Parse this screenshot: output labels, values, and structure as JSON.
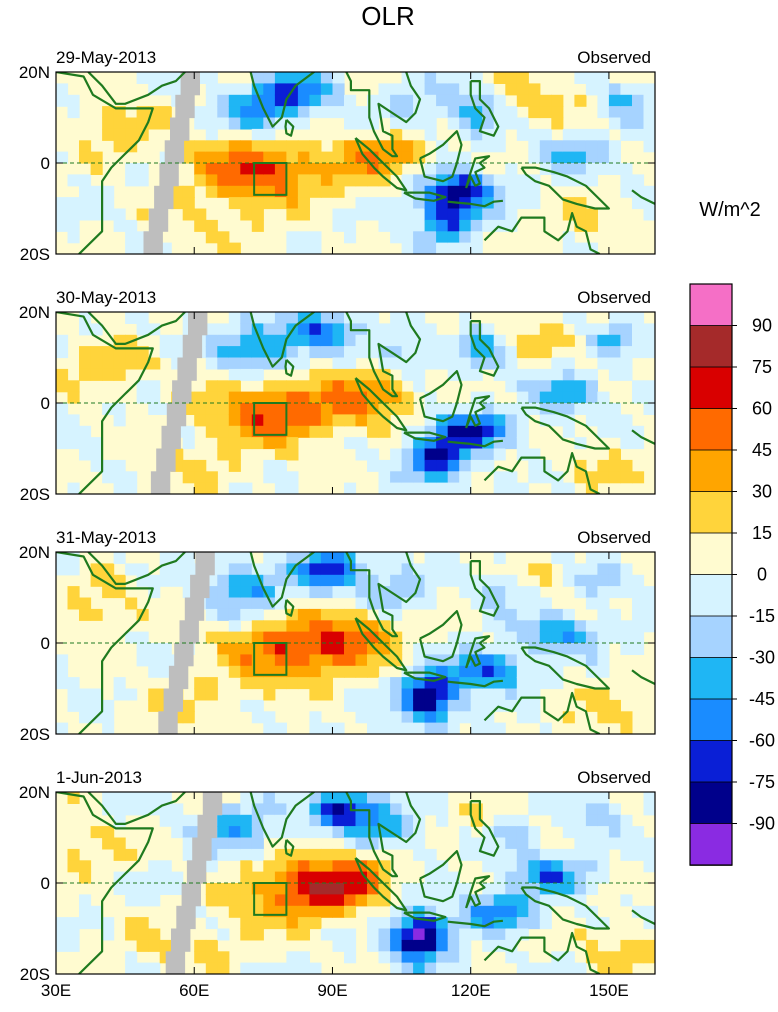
{
  "chart_data": {
    "type": "heatmap",
    "title": "OLR",
    "units": "W/m^2",
    "xlim_deg_east": [
      30,
      160
    ],
    "ylim_deg_north": [
      -20,
      20
    ],
    "x_tick_values": [
      30,
      60,
      90,
      120,
      150
    ],
    "x_tick_labels": [
      "30E",
      "60E",
      "90E",
      "120E",
      "150E"
    ],
    "y_tick_values": [
      20,
      0,
      -20
    ],
    "y_tick_labels": [
      "20N",
      "0",
      "20S"
    ],
    "panel_tag": "Observed",
    "panels": [
      {
        "date": "29-May-2013",
        "source": "Observed"
      },
      {
        "date": "30-May-2013",
        "source": "Observed"
      },
      {
        "date": "31-May-2013",
        "source": "Observed"
      },
      {
        "date": "1-Jun-2013",
        "source": "Observed"
      }
    ],
    "colorbar": {
      "levels": [
        90,
        75,
        60,
        45,
        30,
        15,
        0,
        -15,
        -30,
        -45,
        -60,
        -75,
        -90
      ],
      "level_labels": [
        "90",
        "75",
        "60",
        "45",
        "30",
        "15",
        "0",
        "-15",
        "-30",
        "-45",
        "-60",
        "-75",
        "-90"
      ],
      "colors_top_to_bottom": [
        "#f56fc6",
        "#a52a2a",
        "#d90000",
        "#ff6a00",
        "#ffa500",
        "#ffd43b",
        "#fffbd0",
        "#d6f3ff",
        "#a6d3ff",
        "#1fb6f4",
        "#1a8cff",
        "#0a1fd6",
        "#00008b",
        "#8a2be2"
      ]
    },
    "highlight_box": {
      "lon_range": [
        73,
        80
      ],
      "lat_range": [
        -7,
        0
      ]
    },
    "equator_line": true,
    "missing_data_color": "#bebebe",
    "coastline_color": "#1f7a1f"
  }
}
